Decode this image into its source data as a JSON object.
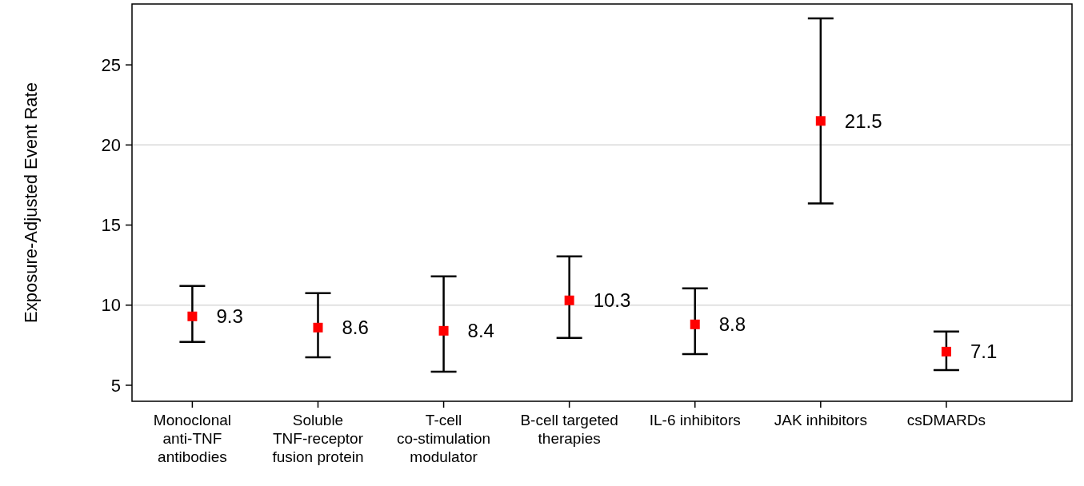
{
  "chart_data": {
    "type": "scatter",
    "ylabel": "Exposure-Adjusted Event Rate",
    "categories": [
      "Monoclonal anti-TNF antibodies",
      "Soluble TNF-receptor fusion protein",
      "T-cell co-stimulation modulator",
      "B-cell targeted therapies",
      "IL-6 inhibitors",
      "JAK inhibitors",
      "csDMARDs"
    ],
    "values": [
      9.3,
      8.6,
      8.4,
      10.3,
      8.8,
      21.5,
      7.1
    ],
    "errors": [
      [
        7.7,
        11.2
      ],
      [
        6.75,
        10.75
      ],
      [
        5.85,
        11.8
      ],
      [
        7.95,
        13.05
      ],
      [
        6.95,
        11.05
      ],
      [
        16.35,
        27.9
      ],
      [
        5.95,
        8.35
      ]
    ],
    "color": "#ff0000",
    "marker": "square",
    "data_labels": true,
    "ylim": [
      4,
      28.8
    ],
    "yticks": [
      5,
      10,
      15,
      20,
      25
    ],
    "ref_lines": [
      {
        "axis": "y",
        "value": 10,
        "color": "#d9d9d9"
      },
      {
        "axis": "y",
        "value": 20,
        "color": "#d9d9d9"
      }
    ]
  }
}
